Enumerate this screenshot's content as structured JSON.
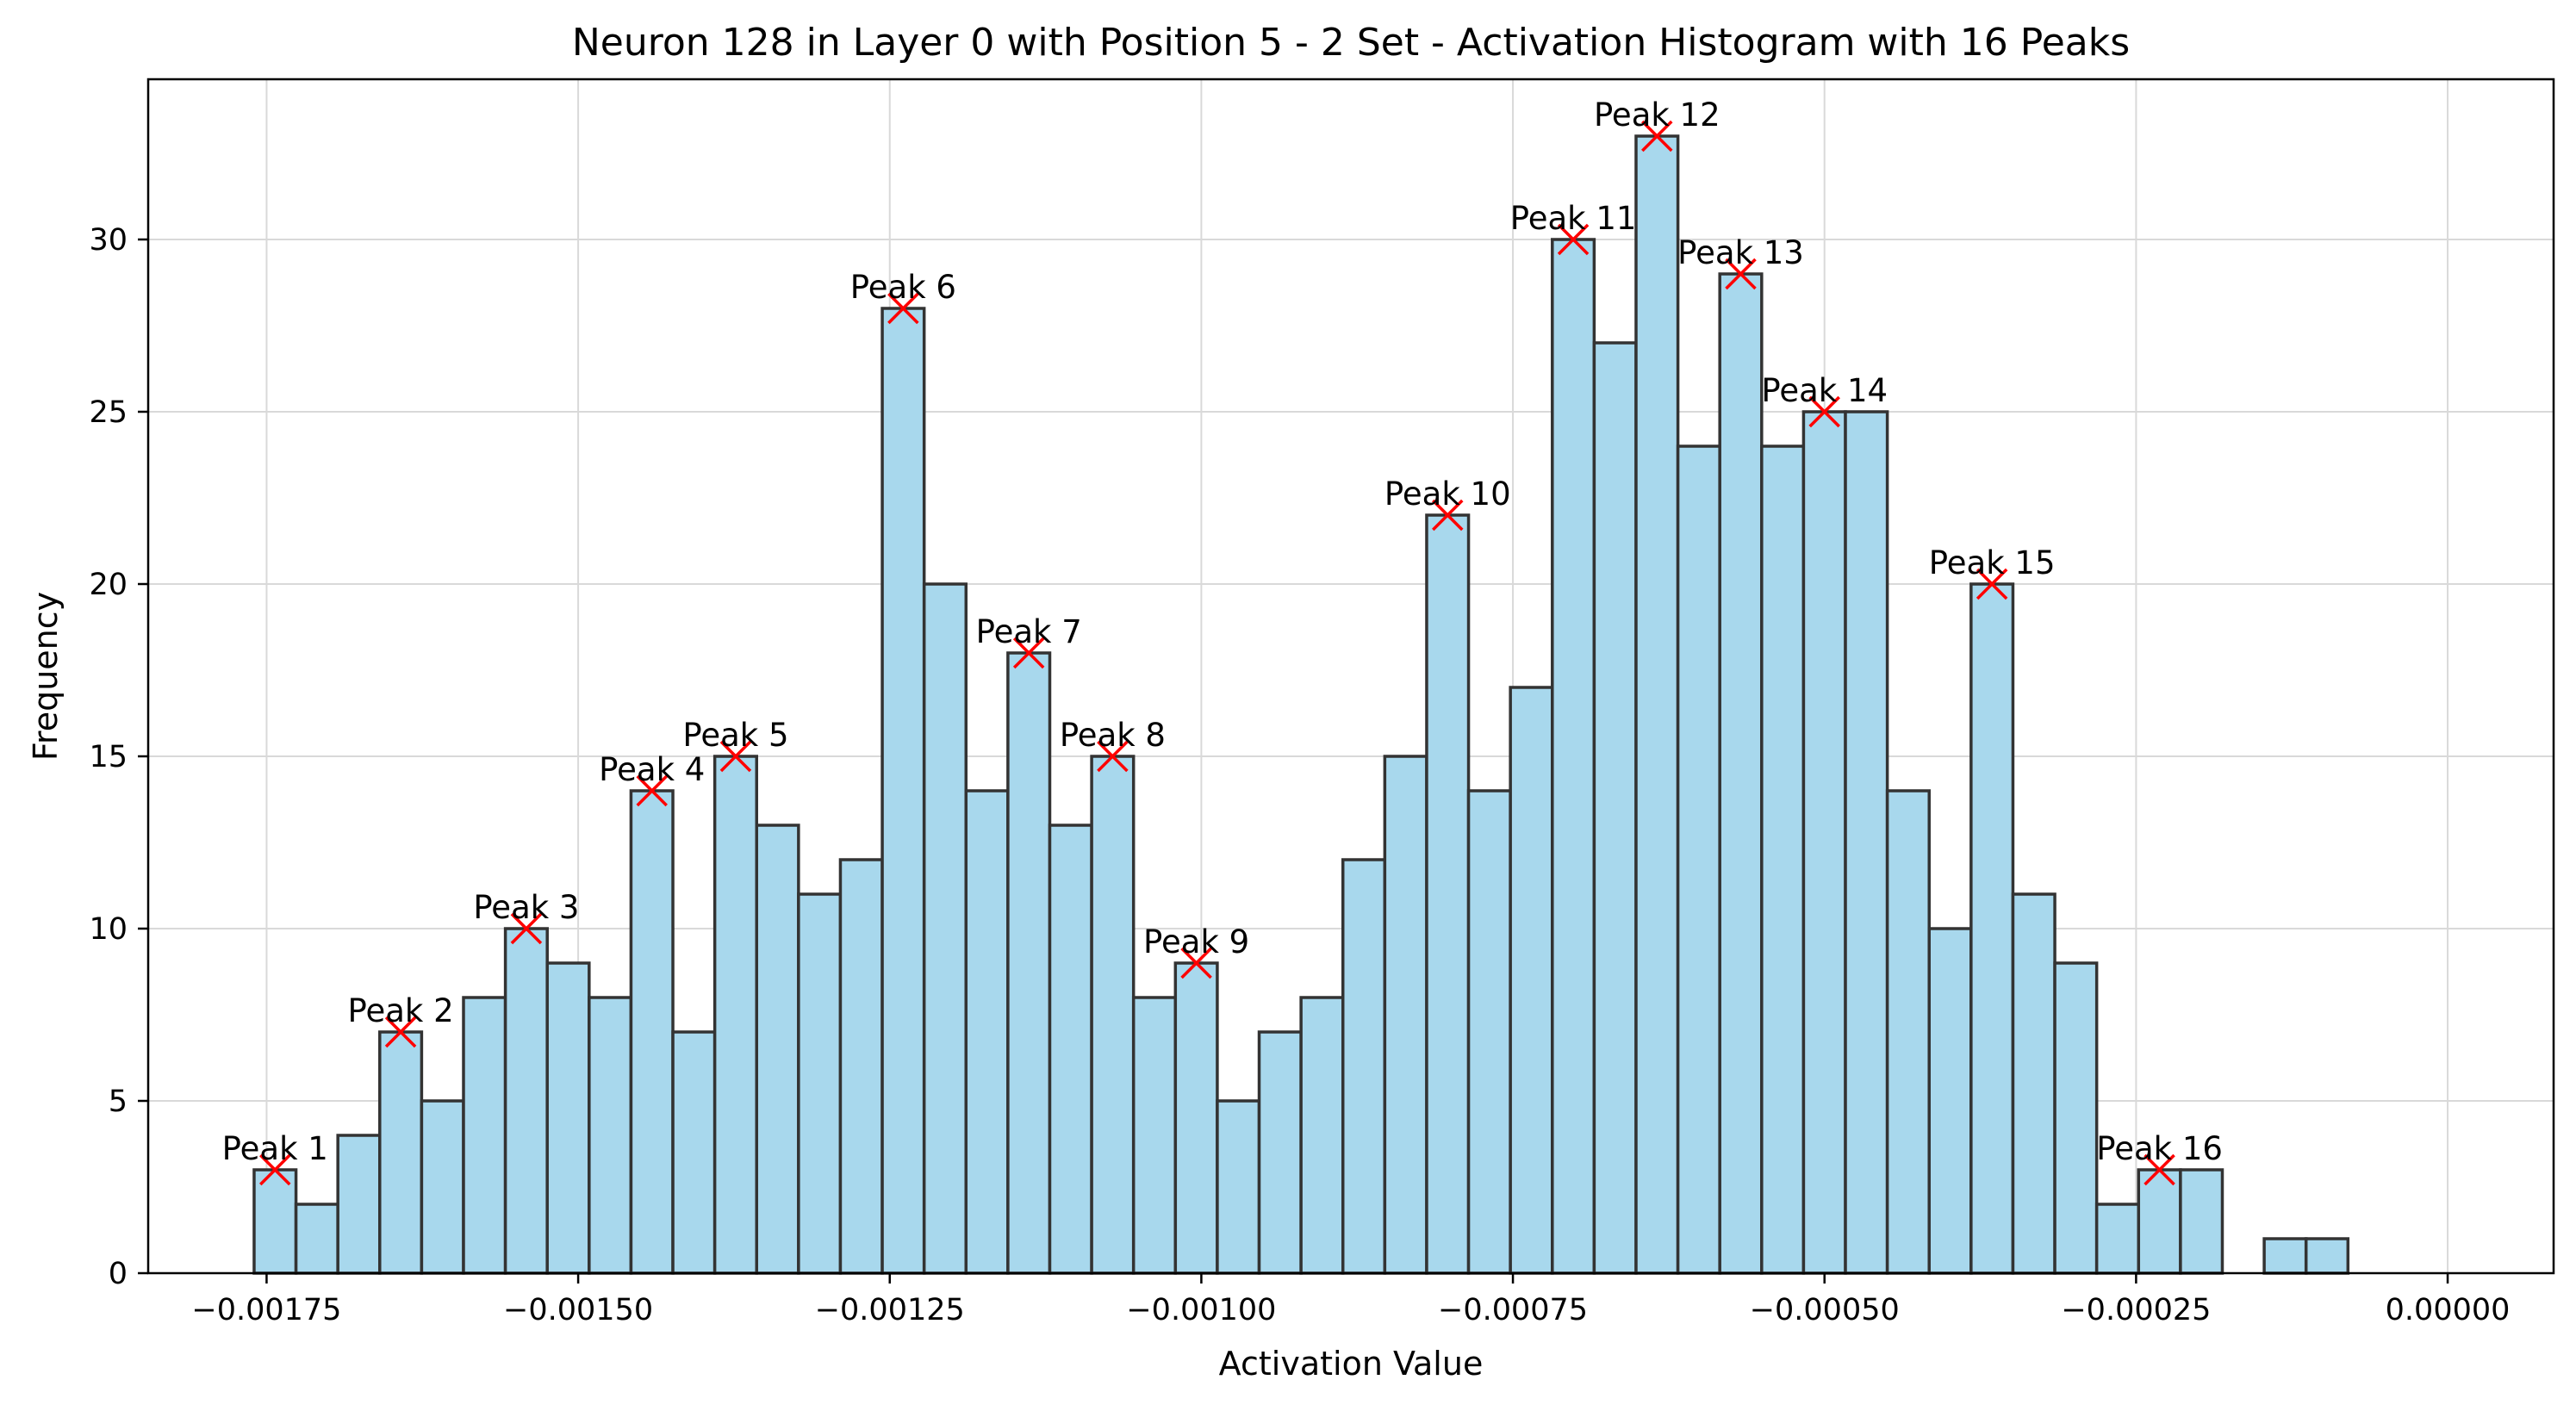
{
  "chart_data": {
    "type": "bar",
    "title": "Neuron 128 in Layer 0 with Position 5 - 2 Set - Activation Histogram with 16 Peaks",
    "xlabel": "Activation Value",
    "ylabel": "Frequency",
    "xlim": [
      -0.001845,
      8.5e-05
    ],
    "ylim": [
      0,
      34.65
    ],
    "grid": true,
    "bin_start": -0.00176,
    "bin_width": 3.36e-05,
    "values": [
      3,
      2,
      4,
      7,
      5,
      8,
      10,
      9,
      8,
      14,
      7,
      15,
      13,
      11,
      12,
      28,
      20,
      14,
      18,
      13,
      15,
      8,
      9,
      5,
      7,
      8,
      12,
      15,
      22,
      14,
      17,
      30,
      27,
      33,
      24,
      29,
      24,
      25,
      25,
      14,
      10,
      20,
      11,
      9,
      2,
      3,
      3,
      0,
      1,
      1
    ],
    "x_ticks": [
      {
        "value": -0.00175,
        "label": "−0.00175"
      },
      {
        "value": -0.0015,
        "label": "−0.00150"
      },
      {
        "value": -0.00125,
        "label": "−0.00125"
      },
      {
        "value": -0.001,
        "label": "−0.00100"
      },
      {
        "value": -0.00075,
        "label": "−0.00075"
      },
      {
        "value": -0.0005,
        "label": "−0.00050"
      },
      {
        "value": -0.00025,
        "label": "−0.00025"
      },
      {
        "value": 0,
        "label": "0.00000"
      }
    ],
    "y_ticks": [
      {
        "value": 0,
        "label": "0"
      },
      {
        "value": 5,
        "label": "5"
      },
      {
        "value": 10,
        "label": "10"
      },
      {
        "value": 15,
        "label": "15"
      },
      {
        "value": 20,
        "label": "20"
      },
      {
        "value": 25,
        "label": "25"
      },
      {
        "value": 30,
        "label": "30"
      }
    ],
    "peaks": [
      {
        "label": "Peak 1",
        "bin": 0,
        "value": 3
      },
      {
        "label": "Peak 2",
        "bin": 3,
        "value": 7
      },
      {
        "label": "Peak 3",
        "bin": 6,
        "value": 10
      },
      {
        "label": "Peak 4",
        "bin": 9,
        "value": 14
      },
      {
        "label": "Peak 5",
        "bin": 11,
        "value": 15
      },
      {
        "label": "Peak 6",
        "bin": 15,
        "value": 28
      },
      {
        "label": "Peak 7",
        "bin": 18,
        "value": 18
      },
      {
        "label": "Peak 8",
        "bin": 20,
        "value": 15
      },
      {
        "label": "Peak 9",
        "bin": 22,
        "value": 9
      },
      {
        "label": "Peak 10",
        "bin": 28,
        "value": 22
      },
      {
        "label": "Peak 11",
        "bin": 31,
        "value": 30
      },
      {
        "label": "Peak 12",
        "bin": 33,
        "value": 33
      },
      {
        "label": "Peak 13",
        "bin": 35,
        "value": 29
      },
      {
        "label": "Peak 14",
        "bin": 37,
        "value": 25
      },
      {
        "label": "Peak 15",
        "bin": 41,
        "value": 20
      },
      {
        "label": "Peak 16",
        "bin": 45,
        "value": 3
      }
    ],
    "colors": {
      "bar_fill": "#a8d8ed",
      "bar_edge": "#333333",
      "peak_marker": "#ff0000"
    }
  }
}
